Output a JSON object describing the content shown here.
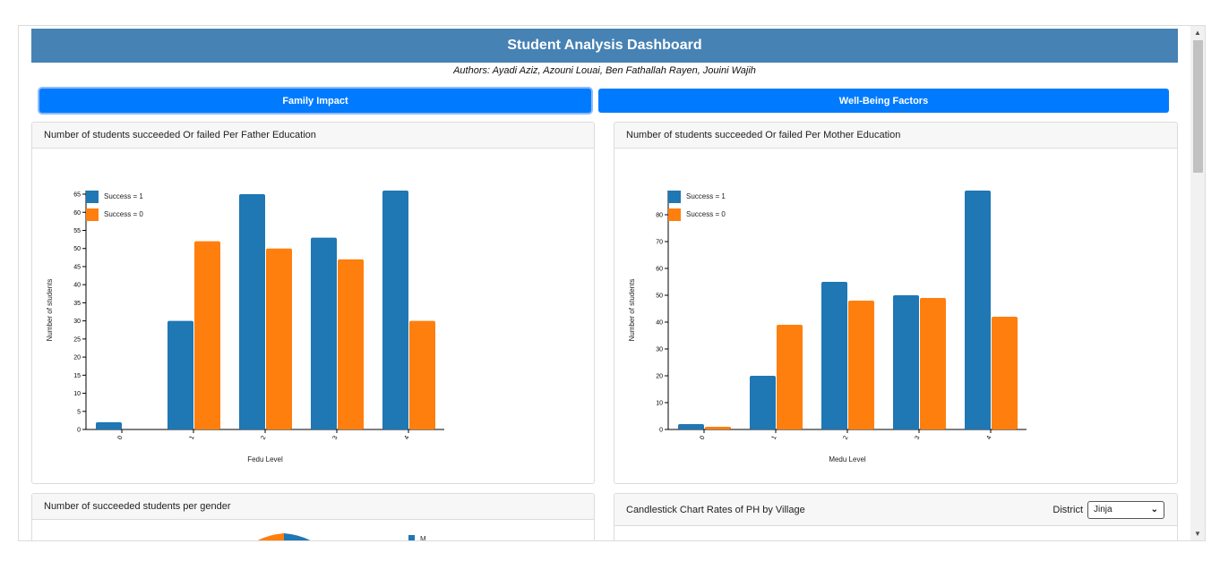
{
  "header": {
    "title": "Student Analysis Dashboard",
    "authors": "Authors: Ayadi Aziz, Azouni Louai, Ben Fathallah Rayen, Jouini Wajih"
  },
  "tabs": [
    {
      "label": "Family Impact"
    },
    {
      "label": "Well-Being Factors"
    }
  ],
  "colors": {
    "success1": "#1f77b4",
    "success0": "#ff7f0e",
    "header_bg": "#4682b4",
    "tab_bg": "#007bff"
  },
  "cards": {
    "father": {
      "title": "Number of students succeeded Or failed Per Father Education"
    },
    "mother": {
      "title": "Number of students succeeded Or failed Per Mother Education"
    },
    "gender": {
      "title": "Number of succeeded students per gender",
      "legend_label": "M"
    },
    "candlestick": {
      "title": "Candlestick Chart Rates of PH by Village",
      "district_label": "District",
      "district_value": "Jinja"
    }
  },
  "chart_data": [
    {
      "type": "bar",
      "categories": [
        "0",
        "1",
        "2",
        "3",
        "4"
      ],
      "series": [
        {
          "name": "Success = 1",
          "values": [
            2,
            30,
            65,
            53,
            66
          ]
        },
        {
          "name": "Success = 0",
          "values": [
            0,
            52,
            50,
            47,
            30
          ]
        }
      ],
      "xlabel": "Fedu Level",
      "ylabel": "Number of students",
      "ylim": [
        0,
        66
      ],
      "yticks": [
        0,
        5,
        10,
        15,
        20,
        25,
        30,
        35,
        40,
        45,
        50,
        55,
        60,
        65
      ],
      "legend": "top-left"
    },
    {
      "type": "bar",
      "categories": [
        "0",
        "1",
        "2",
        "3",
        "4"
      ],
      "series": [
        {
          "name": "Success = 1",
          "values": [
            2,
            20,
            55,
            50,
            89
          ]
        },
        {
          "name": "Success = 0",
          "values": [
            1,
            39,
            48,
            49,
            42
          ]
        }
      ],
      "xlabel": "Medu Level",
      "ylabel": "Number of students",
      "ylim": [
        0,
        89
      ],
      "yticks": [
        0,
        10,
        20,
        30,
        40,
        50,
        60,
        70,
        80
      ],
      "legend": "top-left"
    }
  ]
}
